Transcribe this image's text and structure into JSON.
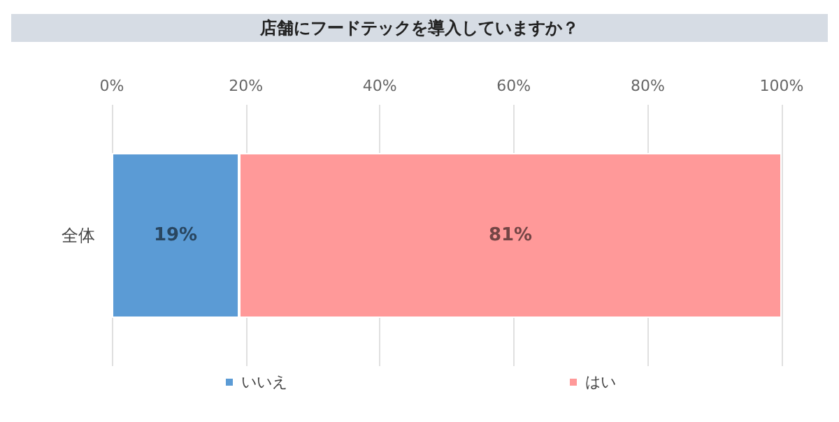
{
  "chart_data": {
    "type": "bar",
    "title": "店舗にフードテックを導入していますか？",
    "orientation": "horizontal",
    "stacked": true,
    "categories": [
      "全体"
    ],
    "series": [
      {
        "name": "いいえ",
        "color": "#5b9bd5",
        "values": [
          19
        ],
        "value_labels": [
          "19%"
        ]
      },
      {
        "name": "はい",
        "color": "#ff9999",
        "values": [
          81
        ],
        "value_labels": [
          "81%"
        ]
      }
    ],
    "xlim": [
      0,
      100
    ],
    "xticks": [
      {
        "value": 0,
        "label": "0%"
      },
      {
        "value": 20,
        "label": "20%"
      },
      {
        "value": 40,
        "label": "40%"
      },
      {
        "value": 60,
        "label": "60%"
      },
      {
        "value": 80,
        "label": "80%"
      },
      {
        "value": 100,
        "label": "100%"
      }
    ],
    "grid": "x",
    "legend": "bottom"
  }
}
